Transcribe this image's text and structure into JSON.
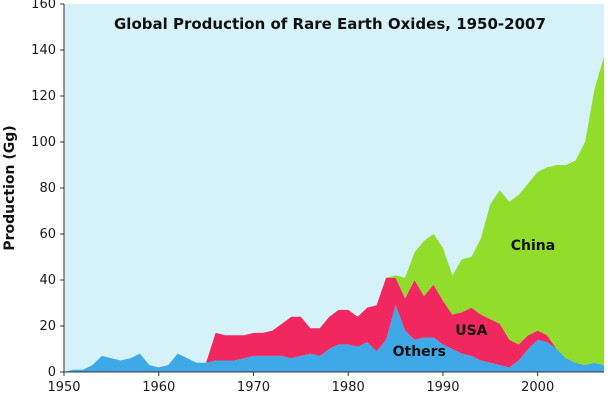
{
  "chart_data": {
    "type": "area",
    "stacked": true,
    "title": "Global Production of Rare Earth Oxides, 1950-2007",
    "ylabel": "Production (Gg)",
    "xlim": [
      1950,
      2007
    ],
    "ylim": [
      0,
      160
    ],
    "x_ticks": [
      1950,
      1960,
      1970,
      1980,
      1990,
      2000
    ],
    "y_ticks": [
      0,
      20,
      40,
      60,
      80,
      100,
      120,
      140,
      160
    ],
    "grid": false,
    "colors": {
      "background": "#d5f2f8",
      "Others": "#3ea9e6",
      "USA": "#f0285f",
      "China": "#92dd2b"
    },
    "series_labels": [
      {
        "name": "Others",
        "x": 1987.5,
        "y": 7
      },
      {
        "name": "USA",
        "x": 1993,
        "y": 16
      },
      {
        "name": "China",
        "x": 1999.5,
        "y": 53
      }
    ],
    "x": [
      1950,
      1951,
      1952,
      1953,
      1954,
      1955,
      1956,
      1957,
      1958,
      1959,
      1960,
      1961,
      1962,
      1963,
      1964,
      1965,
      1966,
      1967,
      1968,
      1969,
      1970,
      1971,
      1972,
      1973,
      1974,
      1975,
      1976,
      1977,
      1978,
      1979,
      1980,
      1981,
      1982,
      1983,
      1984,
      1985,
      1986,
      1987,
      1988,
      1989,
      1990,
      1991,
      1992,
      1993,
      1994,
      1995,
      1996,
      1997,
      1998,
      1999,
      2000,
      2001,
      2002,
      2003,
      2004,
      2005,
      2006,
      2007
    ],
    "series": [
      {
        "name": "Others",
        "values": [
          0,
          1,
          1,
          3,
          7,
          6,
          5,
          6,
          8,
          3,
          2,
          3,
          8,
          6,
          4,
          4,
          5,
          5,
          5,
          6,
          7,
          7,
          7,
          7,
          6,
          7,
          8,
          7,
          10,
          12,
          12,
          11,
          13,
          9,
          14,
          29,
          18,
          14,
          15,
          15,
          12,
          10,
          8,
          7,
          5,
          4,
          3,
          2,
          5,
          10,
          14,
          13,
          10,
          6,
          4,
          3,
          4,
          3
        ]
      },
      {
        "name": "USA",
        "values": [
          0,
          0,
          0,
          0,
          0,
          0,
          0,
          0,
          0,
          0,
          0,
          0,
          0,
          0,
          0,
          0,
          12,
          11,
          11,
          10,
          10,
          10,
          11,
          14,
          18,
          17,
          11,
          12,
          14,
          15,
          15,
          13,
          15,
          20,
          27,
          12,
          14,
          26,
          18,
          23,
          19,
          15,
          18,
          21,
          20,
          19,
          18,
          12,
          7,
          6,
          4,
          3,
          0,
          0,
          0,
          0,
          0,
          0
        ]
      },
      {
        "name": "China",
        "values": [
          0,
          0,
          0,
          0,
          0,
          0,
          0,
          0,
          0,
          0,
          0,
          0,
          0,
          0,
          0,
          0,
          0,
          0,
          0,
          0,
          0,
          0,
          0,
          0,
          0,
          0,
          0,
          0,
          0,
          0,
          0,
          0,
          0,
          0,
          0,
          1,
          9,
          12,
          24,
          22,
          23,
          17,
          23,
          22,
          33,
          50,
          58,
          60,
          65,
          66,
          69,
          73,
          80,
          84,
          88,
          97,
          119,
          134
        ]
      }
    ]
  }
}
